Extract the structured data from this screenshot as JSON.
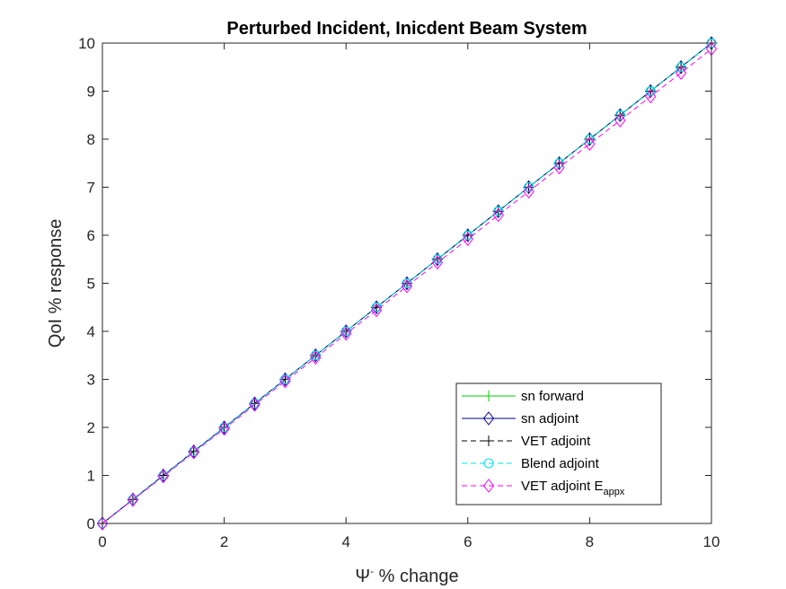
{
  "chart_data": {
    "type": "line",
    "title": "Perturbed Incident, Inicdent Beam System",
    "xlabel_symbol": "Ψ",
    "xlabel_superscript": "-",
    "xlabel_text": " % change",
    "ylabel": "QoI % response",
    "xlim": [
      0,
      10
    ],
    "ylim": [
      0,
      10
    ],
    "xticks": [
      0,
      2,
      4,
      6,
      8,
      10
    ],
    "yticks": [
      0,
      1,
      2,
      3,
      4,
      5,
      6,
      7,
      8,
      9,
      10
    ],
    "grid": false,
    "legend_position": "bottom-right",
    "x": [
      0,
      0.5,
      1,
      1.5,
      2,
      2.5,
      3,
      3.5,
      4,
      4.5,
      5,
      5.5,
      6,
      6.5,
      7,
      7.5,
      8,
      8.5,
      9,
      9.5,
      10
    ],
    "series": [
      {
        "name": "sn forward",
        "color": "#00cc00",
        "dash": "solid",
        "marker": "plus",
        "values": [
          0,
          0.5,
          1,
          1.5,
          2,
          2.5,
          3,
          3.5,
          4,
          4.5,
          5,
          5.5,
          6,
          6.5,
          7,
          7.5,
          8,
          8.5,
          9,
          9.5,
          10
        ]
      },
      {
        "name": "sn adjoint",
        "color": "#00008b",
        "dash": "solid",
        "marker": "diamond",
        "values": [
          0,
          0.5,
          1,
          1.5,
          2,
          2.5,
          3,
          3.5,
          4,
          4.5,
          5,
          5.5,
          6,
          6.5,
          7,
          7.5,
          8,
          8.5,
          9,
          9.5,
          10
        ]
      },
      {
        "name": "VET adjoint",
        "color": "#000000",
        "dash": "dashed",
        "marker": "plus",
        "values": [
          0,
          0.5,
          1,
          1.5,
          2,
          2.5,
          3,
          3.5,
          4,
          4.5,
          5,
          5.5,
          6,
          6.5,
          7,
          7.5,
          8,
          8.5,
          9,
          9.5,
          10
        ]
      },
      {
        "name": "Blend adjoint",
        "color": "#00e5ee",
        "dash": "dashed",
        "marker": "circle",
        "values": [
          0,
          0.5,
          1,
          1.5,
          2,
          2.5,
          3,
          3.5,
          4,
          4.5,
          5,
          5.5,
          6,
          6.5,
          7,
          7.5,
          8,
          8.5,
          9,
          9.5,
          10
        ]
      },
      {
        "name": "VET adjoint E",
        "name_subscript": "appx",
        "color": "#ff00ff",
        "dash": "dashed",
        "marker": "diamond",
        "values": [
          0,
          0.49,
          0.98,
          1.48,
          1.97,
          2.47,
          2.96,
          3.45,
          3.95,
          4.44,
          4.94,
          5.43,
          5.92,
          6.42,
          6.91,
          7.41,
          7.9,
          8.39,
          8.89,
          9.38,
          9.88
        ]
      }
    ]
  }
}
